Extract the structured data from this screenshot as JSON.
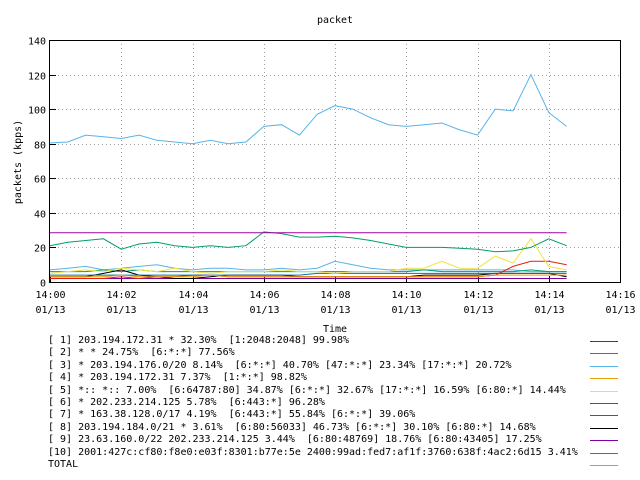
{
  "chart_data": {
    "type": "line",
    "title": "packet",
    "xlabel": "Time",
    "ylabel": "packets (kpps)",
    "ylim": [
      0,
      140
    ],
    "yticks": [
      0,
      20,
      40,
      60,
      80,
      100,
      120,
      140
    ],
    "xlim": [
      "14:00",
      "14:16"
    ],
    "xticks": [
      {
        "time": "14:00",
        "date": "01/13"
      },
      {
        "time": "14:02",
        "date": "01/13"
      },
      {
        "time": "14:04",
        "date": "01/13"
      },
      {
        "time": "14:06",
        "date": "01/13"
      },
      {
        "time": "14:08",
        "date": "01/13"
      },
      {
        "time": "14:10",
        "date": "01/13"
      },
      {
        "time": "14:12",
        "date": "01/13"
      },
      {
        "time": "14:14",
        "date": "01/13"
      },
      {
        "time": "14:16",
        "date": "01/13"
      }
    ],
    "x": [
      "14:00",
      "14:00:30",
      "14:01",
      "14:01:30",
      "14:02",
      "14:02:30",
      "14:03",
      "14:03:30",
      "14:04",
      "14:04:30",
      "14:05",
      "14:05:30",
      "14:06",
      "14:06:30",
      "14:07",
      "14:07:30",
      "14:08",
      "14:08:30",
      "14:09",
      "14:09:30",
      "14:10",
      "14:10:30",
      "14:11",
      "14:11:30",
      "14:12",
      "14:12:30",
      "14:13",
      "14:13:30",
      "14:14",
      "14:14:30"
    ],
    "grid": true,
    "series": [
      {
        "name": "[ 1] 203.194.172.31 * 32.30%  [1:2048:2048] 99.98%",
        "color": "#a000a0",
        "values": [
          28.5,
          28.5,
          28.5,
          28.5,
          28.5,
          28.5,
          28.5,
          28.5,
          28.5,
          28.5,
          28.5,
          28.5,
          28.5,
          28.5,
          28.5,
          28.5,
          28.5,
          28.5,
          28.5,
          28.5,
          28.5,
          28.5,
          28.5,
          28.5,
          28.5,
          28.5,
          28.5,
          28.5,
          28.5,
          28.5
        ]
      },
      {
        "name": "[ 2] * * 24.75%  [6:*:*] 77.56%",
        "color": "#00a060",
        "values": [
          21,
          23,
          24,
          25,
          19,
          22,
          23,
          21,
          20,
          21,
          20,
          21,
          29,
          28,
          26,
          26,
          26.5,
          25.5,
          24,
          22,
          20,
          20,
          20,
          19.5,
          19,
          17.5,
          18,
          20,
          25,
          21
        ]
      },
      {
        "name": "[ 3] * 203.194.176.0/20 8.14%  [6:*:*] 40.70% [47:*:*] 23.34% [17:*:*] 20.72%",
        "color": "#56b4e9",
        "values": [
          80.5,
          81,
          85,
          84,
          83,
          85,
          82,
          81,
          80,
          82,
          80,
          81,
          90,
          91,
          85,
          97,
          102,
          100,
          95,
          91,
          90,
          91,
          92,
          88,
          85,
          100,
          99,
          120,
          98,
          90
        ]
      },
      {
        "name": "[ 4] * 203.194.172.31 7.37%  [1:*:*] 98.82%",
        "color": "#e69f00",
        "values": [
          3,
          3,
          3,
          3,
          4,
          3,
          3,
          3,
          3,
          4,
          3,
          3,
          3,
          3,
          3,
          3,
          3,
          3,
          3,
          3,
          3,
          3,
          3,
          3,
          3,
          4,
          4,
          4,
          4,
          4
        ]
      },
      {
        "name": "[ 5] *:: *:: 7.00%  [6:64787:80] 34.87% [6:*:*] 32.67% [17:*:*] 16.59% [6:80:*] 14.44%",
        "color": "#f0e442",
        "values": [
          5,
          6,
          7,
          6,
          8,
          7,
          6,
          8,
          6,
          5,
          6,
          6,
          6,
          7,
          6,
          6,
          5,
          6,
          6,
          6,
          8,
          8,
          12,
          8,
          8,
          15,
          11,
          25,
          9,
          7
        ]
      },
      {
        "name": "[ 6] * 202.233.214.125 5.78%  [6:443:*] 96.28%",
        "color": "#0072b2",
        "values": [
          4,
          4,
          4,
          4,
          4,
          4,
          4,
          4,
          4,
          4,
          4,
          4,
          4,
          4,
          4,
          5,
          5,
          5,
          5,
          5,
          5,
          5,
          5,
          5,
          5,
          5,
          5,
          5,
          5,
          5
        ]
      },
      {
        "name": "[ 7] * 163.38.128.0/17 4.19%  [6:443:*] 55.84% [6:*:*] 39.06%",
        "color": "#e51e10",
        "values": [
          2,
          2,
          2,
          2,
          3,
          2,
          3,
          3,
          4,
          4,
          3,
          3,
          3,
          3,
          3,
          3,
          3,
          3,
          3,
          3,
          3,
          3,
          3,
          3,
          3,
          4,
          9,
          12,
          12,
          10
        ]
      },
      {
        "name": "[ 8] 203.194.184.0/21 * 3.61%  [6:80:56033] 46.73% [6:*:*] 30.10% [6:80:*] 14.68%",
        "color": "#000000",
        "values": [
          3,
          3,
          3,
          5,
          7,
          4,
          3,
          2,
          2,
          3,
          4,
          4,
          4,
          4,
          3,
          3,
          3,
          3,
          3,
          3,
          3,
          4,
          4,
          4,
          4,
          5,
          5,
          5,
          5,
          3
        ]
      },
      {
        "name": "[ 9] 23.63.160.0/22 202.233.214.125 3.44%  [6:80:48769] 18.76% [6:80:43405] 17.25%",
        "color": "#8000a0",
        "values": [
          2,
          2,
          2,
          2,
          2,
          2,
          2,
          2,
          2,
          2,
          2,
          2,
          2,
          2,
          2,
          2,
          2,
          2,
          2,
          2,
          2,
          2,
          2,
          2,
          2,
          2,
          2,
          2,
          2,
          2
        ]
      },
      {
        "name": "[10] 2001:427c:cf80:f8e0:e03f:8301:b77e:5e 2400:99ad:fed7:af1f:3760:638f:4ac2:6d15 3.41%",
        "color": "#009e73",
        "values": [
          6,
          6,
          6,
          7,
          6,
          7,
          6,
          6,
          6,
          6,
          6,
          6,
          6,
          6,
          6,
          6,
          6,
          6,
          6,
          6,
          6,
          7,
          6,
          6,
          6,
          6,
          6,
          7,
          6,
          6
        ]
      },
      {
        "name": "TOTAL",
        "color": "#56b4e9",
        "values": [
          7,
          8,
          9,
          7,
          8,
          9,
          10,
          8,
          7,
          8,
          8,
          7,
          7,
          8,
          7,
          8,
          12,
          10,
          8,
          7,
          7,
          7,
          7,
          7,
          7,
          7,
          7,
          6,
          6,
          6
        ]
      }
    ]
  }
}
